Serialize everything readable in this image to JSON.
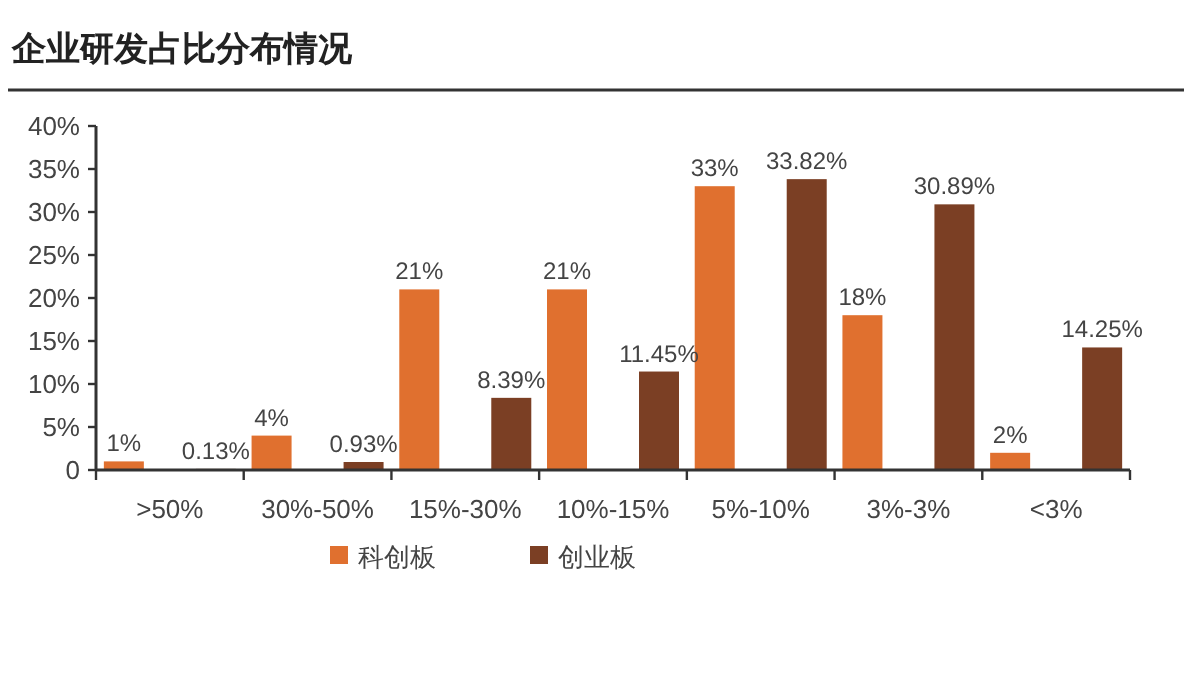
{
  "chart_data": {
    "type": "bar",
    "title": "企业研发占比分布情况",
    "categories": [
      ">50%",
      "30%-50%",
      "15%-30%",
      "10%-15%",
      "5%-10%",
      "3%-3%",
      "<3%"
    ],
    "series": [
      {
        "name": "科创板",
        "color": "#e0702f",
        "values": [
          1,
          4,
          21,
          21,
          33,
          18,
          2
        ],
        "value_labels": [
          "1%",
          "4%",
          "21%",
          "21%",
          "33%",
          "18%",
          "2%"
        ]
      },
      {
        "name": "创业板",
        "color": "#7b3f24",
        "values": [
          0.13,
          0.93,
          8.39,
          11.45,
          33.82,
          30.89,
          14.25
        ],
        "value_labels": [
          "0.13%",
          "0.93%",
          "8.39%",
          "11.45%",
          "33.82%",
          "30.89%",
          "14.25%"
        ]
      }
    ],
    "ylim": [
      0,
      40
    ],
    "yticks": [
      0,
      {
        "value": 5,
        "label": "5%"
      },
      {
        "value": 10,
        "label": "10%"
      },
      {
        "value": 15,
        "label": "15%"
      },
      {
        "value": 20,
        "label": "20%"
      },
      {
        "value": 25,
        "label": "25%"
      },
      {
        "value": 30,
        "label": "30%"
      },
      {
        "value": 35,
        "label": "35%"
      },
      {
        "value": 40,
        "label": "40%"
      }
    ],
    "grid": false,
    "legend": "bottom"
  }
}
